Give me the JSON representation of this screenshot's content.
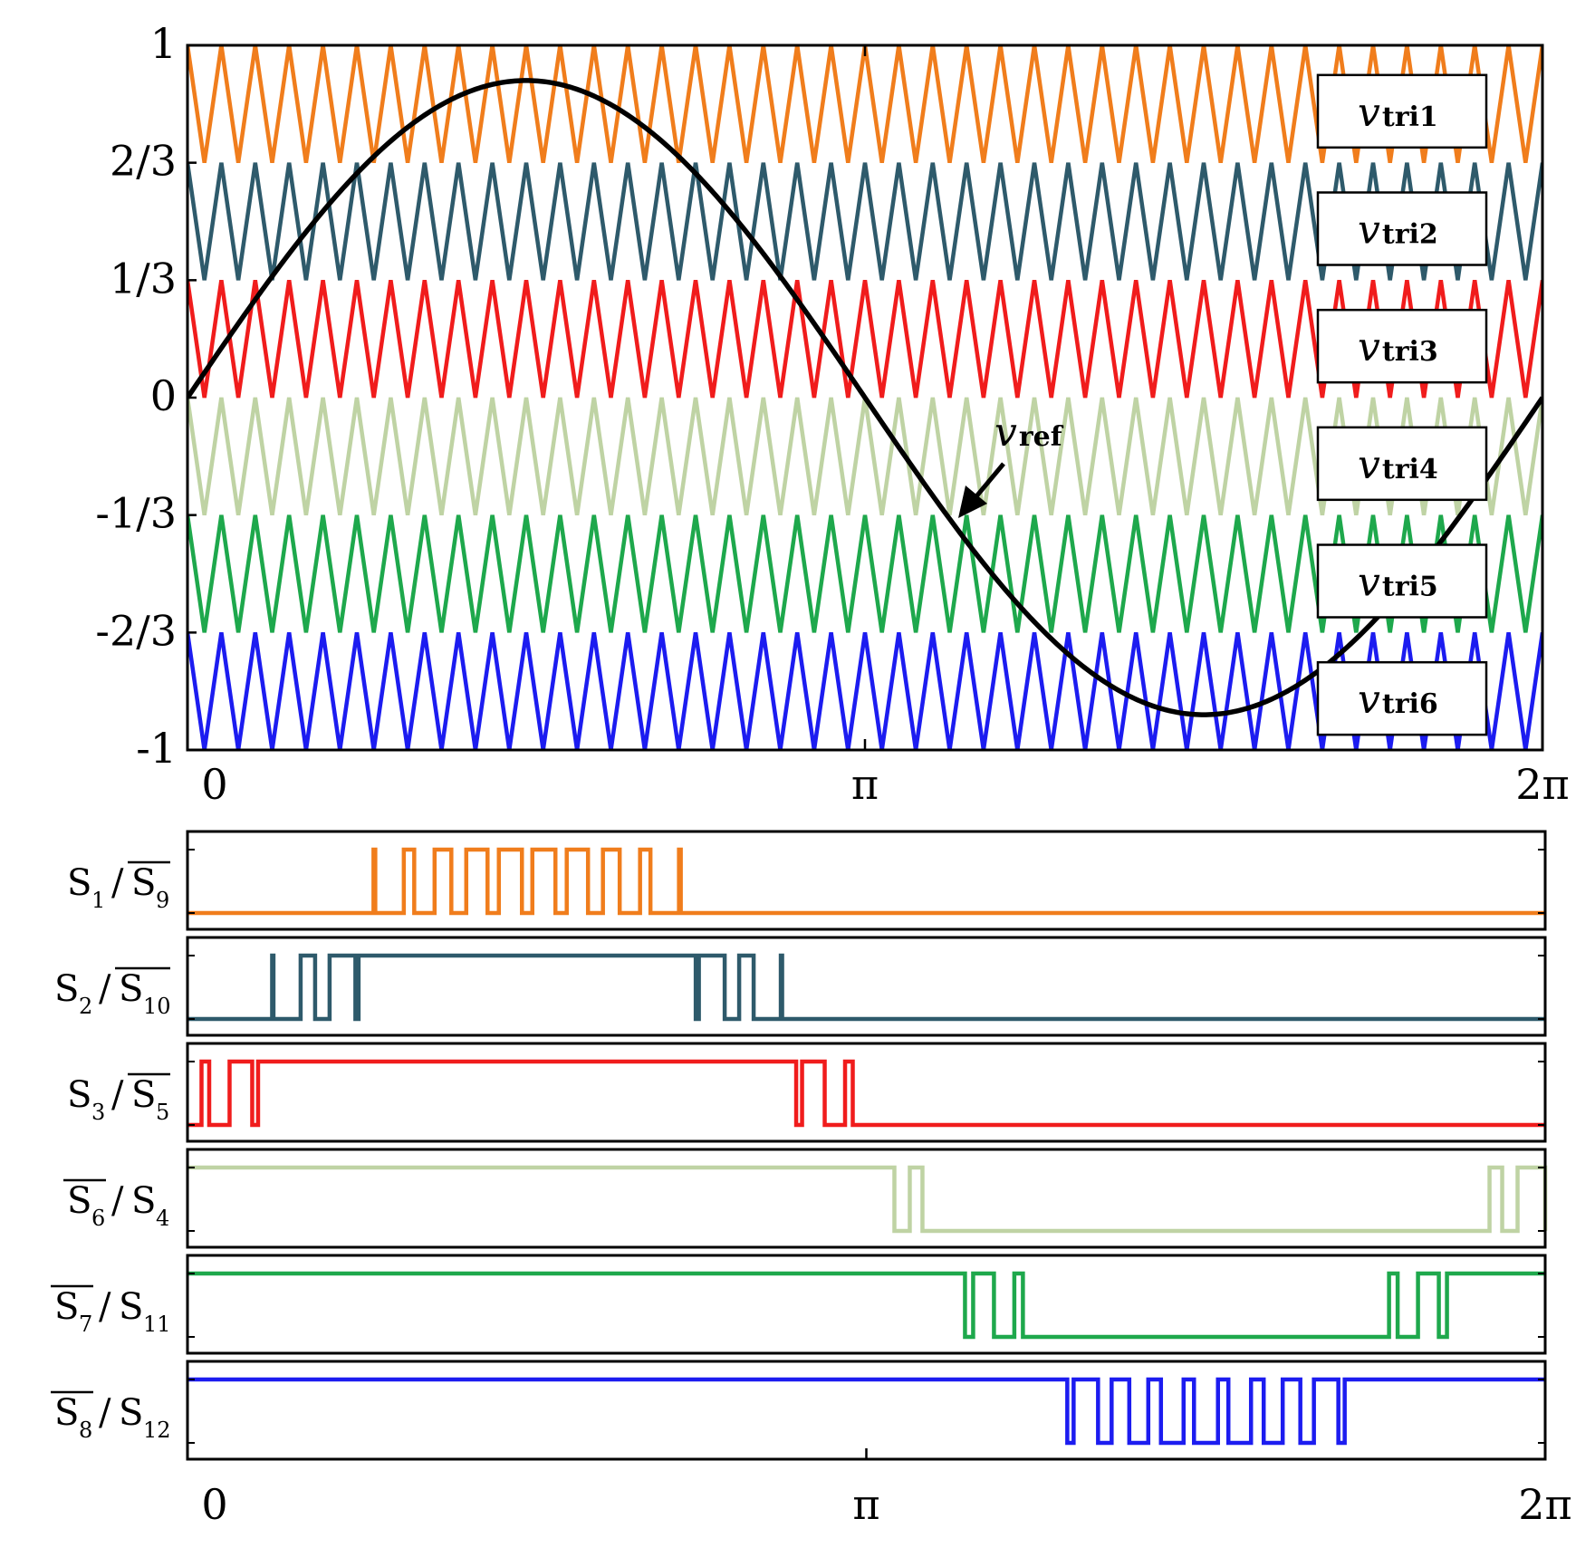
{
  "chart_data": [
    {
      "type": "line",
      "title": "",
      "xlabel": "",
      "ylabel": "",
      "xlim": [
        0,
        6.283185307
      ],
      "ylim": [
        -1,
        1
      ],
      "x_ticks": [
        {
          "value": 0,
          "label": "0"
        },
        {
          "value": 3.14159265,
          "label": "π"
        },
        {
          "value": 6.28318531,
          "label": "2π"
        }
      ],
      "y_ticks": [
        {
          "value": 1,
          "label": "1"
        },
        {
          "value": 0.6667,
          "label": "2/3"
        },
        {
          "value": 0.3333,
          "label": "1/3"
        },
        {
          "value": 0,
          "label": "0"
        },
        {
          "value": -0.3333,
          "label": "-1/3"
        },
        {
          "value": -0.6667,
          "label": "-2/3"
        },
        {
          "value": -1,
          "label": "-1"
        }
      ],
      "reference": {
        "name": "v",
        "sub": "ref",
        "amplitude": 0.9,
        "cycles": 1,
        "color": "#000000"
      },
      "carrier_cycles": 40,
      "series": [
        {
          "name": "v",
          "sub": "tri1",
          "band": [
            0.6667,
            1
          ],
          "color": "#F07D1C"
        },
        {
          "name": "v",
          "sub": "tri2",
          "band": [
            0.3333,
            0.6667
          ],
          "color": "#2E5A6B"
        },
        {
          "name": "v",
          "sub": "tri3",
          "band": [
            0,
            0.3333
          ],
          "color": "#F01C1C"
        },
        {
          "name": "v",
          "sub": "tri4",
          "band": [
            -0.3333,
            0
          ],
          "color": "#BFD3A4"
        },
        {
          "name": "v",
          "sub": "tri5",
          "band": [
            -0.6667,
            -0.3333
          ],
          "color": "#1EA84C"
        },
        {
          "name": "v",
          "sub": "tri6",
          "band": [
            -1,
            -0.6667
          ],
          "color": "#1C1CF0"
        }
      ]
    },
    {
      "type": "line",
      "title": "",
      "xlim": [
        0,
        6.283185307
      ],
      "x_ticks": [
        {
          "value": 0,
          "label": "0"
        },
        {
          "value": 3.14159265,
          "label": "π"
        },
        {
          "value": 6.28318531,
          "label": "2π"
        }
      ],
      "series": [
        {
          "label_a": "S",
          "sub_a": "1",
          "bar_a": false,
          "label_b": "S",
          "sub_b": "9",
          "bar_b": true,
          "carrier": 0,
          "color": "#F07D1C"
        },
        {
          "label_a": "S",
          "sub_a": "2",
          "bar_a": false,
          "label_b": "S",
          "sub_b": "10",
          "bar_b": true,
          "carrier": 1,
          "color": "#2E5A6B"
        },
        {
          "label_a": "S",
          "sub_a": "3",
          "bar_a": false,
          "label_b": "S",
          "sub_b": "5",
          "bar_b": true,
          "carrier": 2,
          "color": "#F01C1C"
        },
        {
          "label_a": "S",
          "sub_a": "6",
          "bar_a": true,
          "label_b": "S",
          "sub_b": "4",
          "bar_b": false,
          "carrier": 3,
          "color": "#BFD3A4"
        },
        {
          "label_a": "S",
          "sub_a": "7",
          "bar_a": true,
          "label_b": "S",
          "sub_b": "11",
          "bar_b": false,
          "carrier": 4,
          "color": "#1EA84C"
        },
        {
          "label_a": "S",
          "sub_a": "8",
          "bar_a": true,
          "label_b": "S",
          "sub_b": "12",
          "bar_b": false,
          "carrier": 5,
          "color": "#1C1CF0"
        }
      ]
    }
  ]
}
